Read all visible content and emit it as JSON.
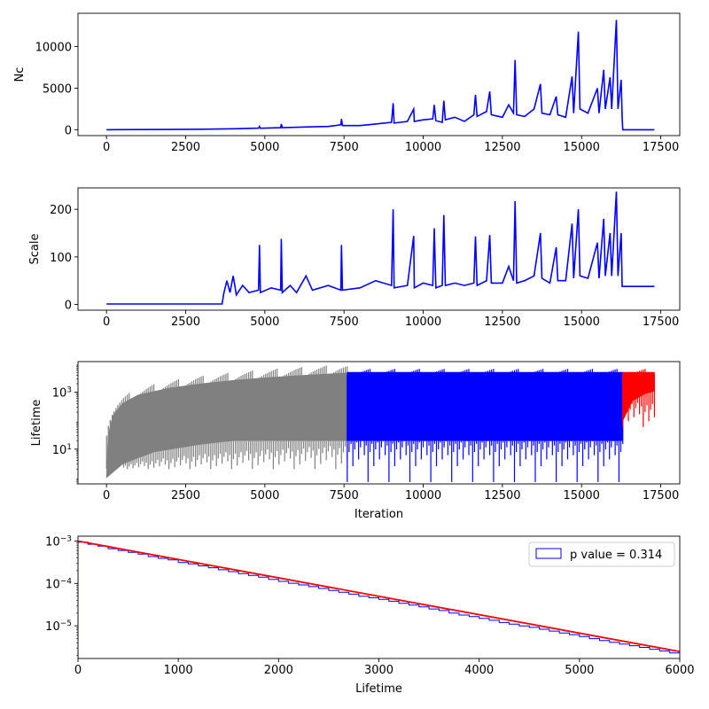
{
  "chart_data": [
    {
      "type": "line",
      "ylabel": "Nc",
      "xlim": [
        -900,
        18100
      ],
      "ylim": [
        -700,
        14000
      ],
      "grid": false,
      "xticks": [
        0,
        2500,
        5000,
        7500,
        10000,
        12500,
        15000,
        17500
      ],
      "yticks": [
        0,
        5000,
        10000
      ],
      "series": [
        {
          "color": "#0000ff",
          "points": [
            [
              0,
              0
            ],
            [
              1000,
              20
            ],
            [
              2000,
              40
            ],
            [
              3000,
              70
            ],
            [
              4000,
              120
            ],
            [
              4800,
              200
            ],
            [
              4830,
              400
            ],
            [
              4860,
              180
            ],
            [
              5500,
              250
            ],
            [
              5520,
              700
            ],
            [
              5550,
              260
            ],
            [
              6500,
              350
            ],
            [
              7000,
              400
            ],
            [
              7400,
              600
            ],
            [
              7420,
              1300
            ],
            [
              7450,
              500
            ],
            [
              8000,
              500
            ],
            [
              8500,
              700
            ],
            [
              9000,
              900
            ],
            [
              9050,
              3200
            ],
            [
              9080,
              800
            ],
            [
              9500,
              1000
            ],
            [
              9700,
              2500
            ],
            [
              9720,
              1000
            ],
            [
              10000,
              1200
            ],
            [
              10300,
              1300
            ],
            [
              10350,
              3000
            ],
            [
              10400,
              1100
            ],
            [
              10600,
              900
            ],
            [
              10650,
              3500
            ],
            [
              10700,
              1200
            ],
            [
              11000,
              1500
            ],
            [
              11300,
              1000
            ],
            [
              11600,
              1800
            ],
            [
              11650,
              4200
            ],
            [
              11700,
              1600
            ],
            [
              12000,
              2200
            ],
            [
              12100,
              4600
            ],
            [
              12150,
              1800
            ],
            [
              12500,
              1500
            ],
            [
              12700,
              3000
            ],
            [
              12850,
              2000
            ],
            [
              12900,
              8400
            ],
            [
              12950,
              1800
            ],
            [
              13200,
              1600
            ],
            [
              13500,
              2500
            ],
            [
              13700,
              5500
            ],
            [
              13750,
              2000
            ],
            [
              14000,
              1800
            ],
            [
              14200,
              4000
            ],
            [
              14250,
              1800
            ],
            [
              14500,
              1500
            ],
            [
              14700,
              6400
            ],
            [
              14750,
              2000
            ],
            [
              14900,
              11800
            ],
            [
              14950,
              2500
            ],
            [
              15200,
              2000
            ],
            [
              15500,
              5000
            ],
            [
              15550,
              2000
            ],
            [
              15700,
              7200
            ],
            [
              15750,
              2500
            ],
            [
              15900,
              6300
            ],
            [
              15950,
              2500
            ],
            [
              16100,
              13200
            ],
            [
              16150,
              2500
            ],
            [
              16250,
              6000
            ],
            [
              16280,
              1500
            ],
            [
              16300,
              0
            ],
            [
              17300,
              0
            ]
          ]
        }
      ]
    },
    {
      "type": "line",
      "ylabel": "Scale",
      "xlim": [
        -900,
        18100
      ],
      "ylim": [
        -12,
        245
      ],
      "grid": false,
      "xticks": [
        0,
        2500,
        5000,
        7500,
        10000,
        12500,
        15000,
        17500
      ],
      "yticks": [
        0,
        100,
        200
      ],
      "series": [
        {
          "color": "#0000ff",
          "points": [
            [
              0,
              1
            ],
            [
              3650,
              1
            ],
            [
              3700,
              22
            ],
            [
              3800,
              50
            ],
            [
              3900,
              25
            ],
            [
              4000,
              60
            ],
            [
              4100,
              20
            ],
            [
              4300,
              40
            ],
            [
              4500,
              25
            ],
            [
              4800,
              30
            ],
            [
              4830,
              125
            ],
            [
              4860,
              25
            ],
            [
              5200,
              35
            ],
            [
              5500,
              30
            ],
            [
              5520,
              138
            ],
            [
              5550,
              25
            ],
            [
              5800,
              40
            ],
            [
              6000,
              25
            ],
            [
              6300,
              60
            ],
            [
              6500,
              30
            ],
            [
              7000,
              40
            ],
            [
              7400,
              30
            ],
            [
              7420,
              125
            ],
            [
              7450,
              30
            ],
            [
              8000,
              35
            ],
            [
              8500,
              50
            ],
            [
              9000,
              40
            ],
            [
              9050,
              200
            ],
            [
              9080,
              35
            ],
            [
              9500,
              40
            ],
            [
              9700,
              144
            ],
            [
              9720,
              35
            ],
            [
              10000,
              45
            ],
            [
              10300,
              40
            ],
            [
              10350,
              160
            ],
            [
              10400,
              35
            ],
            [
              10600,
              40
            ],
            [
              10650,
              188
            ],
            [
              10700,
              40
            ],
            [
              11000,
              45
            ],
            [
              11300,
              40
            ],
            [
              11600,
              45
            ],
            [
              11650,
              143
            ],
            [
              11700,
              40
            ],
            [
              12000,
              50
            ],
            [
              12100,
              146
            ],
            [
              12150,
              45
            ],
            [
              12500,
              45
            ],
            [
              12700,
              80
            ],
            [
              12850,
              50
            ],
            [
              12900,
              217
            ],
            [
              12950,
              45
            ],
            [
              13200,
              50
            ],
            [
              13500,
              60
            ],
            [
              13700,
              150
            ],
            [
              13750,
              55
            ],
            [
              14000,
              45
            ],
            [
              14200,
              120
            ],
            [
              14250,
              50
            ],
            [
              14500,
              50
            ],
            [
              14700,
              170
            ],
            [
              14750,
              55
            ],
            [
              14900,
              200
            ],
            [
              14950,
              60
            ],
            [
              15200,
              55
            ],
            [
              15500,
              130
            ],
            [
              15550,
              55
            ],
            [
              15700,
              180
            ],
            [
              15750,
              60
            ],
            [
              15900,
              150
            ],
            [
              15950,
              60
            ],
            [
              16100,
              237
            ],
            [
              16150,
              60
            ],
            [
              16250,
              150
            ],
            [
              16280,
              38
            ],
            [
              17300,
              38
            ]
          ]
        }
      ]
    },
    {
      "type": "area",
      "ylabel": "Lifetime",
      "xlabel": "Iteration",
      "yscale": "log",
      "xlim": [
        -900,
        18100
      ],
      "ylim": [
        0.6,
        12000
      ],
      "grid": false,
      "xticks": [
        0,
        2500,
        5000,
        7500,
        10000,
        12500,
        15000,
        17500
      ],
      "yticks": [
        10,
        1000
      ],
      "yticklabels": [
        "10^1",
        "10^3"
      ],
      "series": [
        {
          "color": "#808080",
          "x_range": [
            0,
            7600
          ],
          "upper": [
            [
              0,
              1
            ],
            [
              50,
              30
            ],
            [
              200,
              150
            ],
            [
              500,
              400
            ],
            [
              1000,
              800
            ],
            [
              2000,
              1400
            ],
            [
              3000,
              2000
            ],
            [
              4000,
              2600
            ],
            [
              5000,
              3200
            ],
            [
              6000,
              3800
            ],
            [
              7000,
              4400
            ],
            [
              7600,
              4800
            ]
          ],
          "lower": [
            [
              0,
              1
            ],
            [
              500,
              3
            ],
            [
              1000,
              5
            ],
            [
              1500,
              8
            ],
            [
              2000,
              10
            ],
            [
              3000,
              15
            ],
            [
              4000,
              20
            ],
            [
              5000,
              20
            ],
            [
              6000,
              20
            ],
            [
              7600,
              20
            ]
          ]
        },
        {
          "color": "#0000ff",
          "x_range": [
            7600,
            16300
          ],
          "upper": [
            [
              7600,
              5000
            ],
            [
              16300,
              5000
            ]
          ],
          "lower": [
            [
              7600,
              20
            ],
            [
              16300,
              20
            ]
          ]
        },
        {
          "color": "#ff0000",
          "x_range": [
            16300,
            17300
          ],
          "upper": [
            [
              16300,
              5000
            ],
            [
              17300,
              5000
            ]
          ],
          "lower": [
            [
              16300,
              100
            ],
            [
              16600,
              500
            ],
            [
              17000,
              900
            ],
            [
              17300,
              1100
            ]
          ]
        }
      ]
    },
    {
      "type": "histogram",
      "xlabel": "Lifetime",
      "yscale": "log",
      "xlim": [
        0,
        6000
      ],
      "ylim": [
        1.7e-06,
        0.0013
      ],
      "grid": false,
      "xticks": [
        0,
        1000,
        2000,
        3000,
        4000,
        5000,
        6000
      ],
      "yticks": [
        1e-05,
        0.0001,
        0.001
      ],
      "yticklabels": [
        "10^-5",
        "10^-4",
        "10^-3"
      ],
      "legend": {
        "placement": "top-right",
        "label": "p value = 0.314"
      },
      "bin_width": 100,
      "bins": [
        0.00094,
        0.00084,
        0.00076,
        0.00066,
        0.0006,
        0.00054,
        0.00049,
        0.00043,
        0.00039,
        0.00036,
        0.00031,
        0.00029,
        0.00026,
        0.000235,
        0.00021,
        0.00019,
        0.00017,
        0.000155,
        0.00014,
        0.000125,
        0.000112,
        0.000101,
        9.2e-05,
        8.4e-05,
        7.6e-05,
        6.8e-05,
        6.2e-05,
        5.6e-05,
        5e-05,
        4.6e-05,
        4.2e-05,
        3.8e-05,
        3.4e-05,
        3.1e-05,
        2.8e-05,
        2.5e-05,
        2.3e-05,
        2e-05,
        1.8e-05,
        1.65e-05,
        1.5e-05,
        1.35e-05,
        1.2e-05,
        1.1e-05,
        1e-05,
        9.2e-06,
        8.3e-06,
        7.5e-06,
        6.8e-06,
        6.2e-06,
        5.6e-06,
        5e-06,
        4.5e-06,
        4.1e-06,
        3.7e-06,
        3.4e-06,
        3.1e-06,
        2.8e-06,
        2.55e-06,
        2.3e-06
      ],
      "fit": {
        "color": "#ff0000",
        "y0": 0.001,
        "decay_length": 1000
      },
      "series": [
        {
          "name": "p value = 0.314",
          "color": "#0000ff"
        }
      ]
    }
  ]
}
